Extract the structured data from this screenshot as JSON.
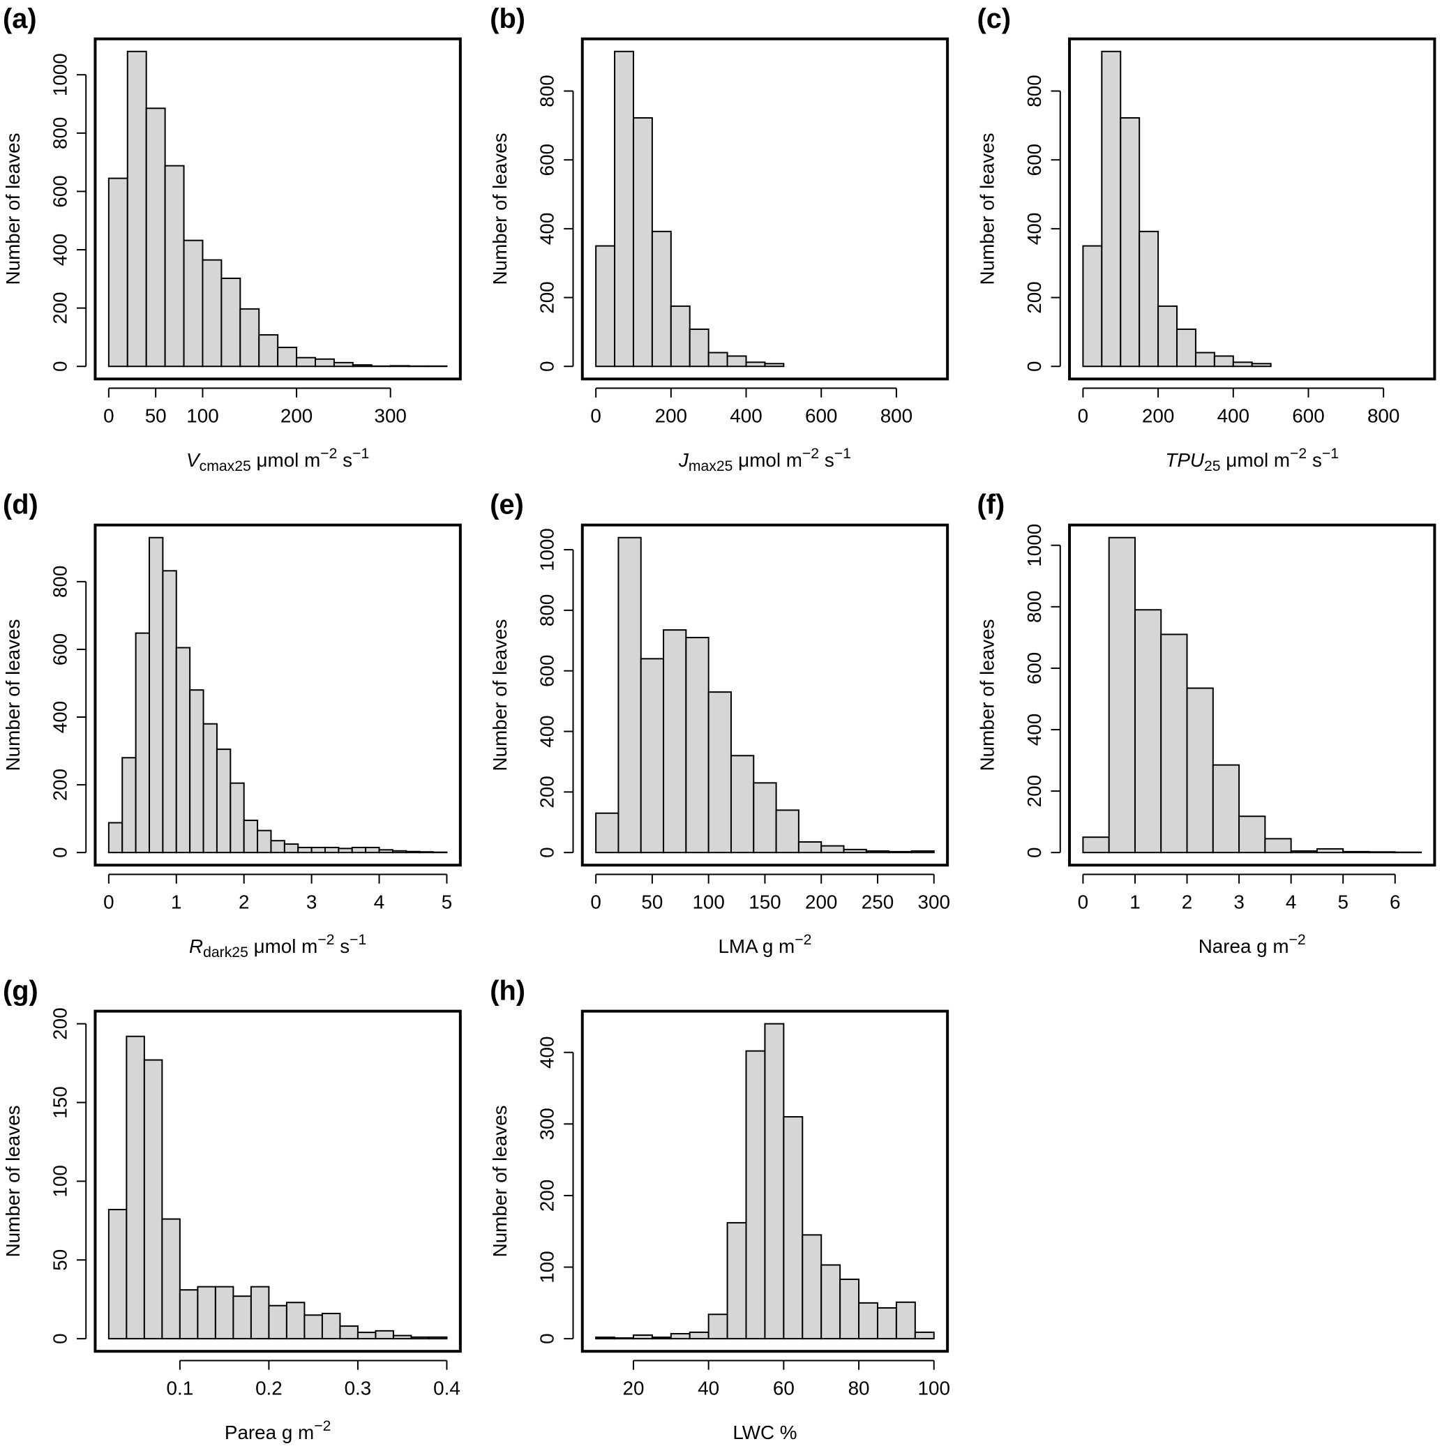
{
  "chart_data": [
    {
      "type": "bar",
      "letter": "(a)",
      "ylabel": "Number of leaves",
      "xlabel": [
        {
          "t": "V",
          "s": "i"
        },
        {
          "t": "cmax25",
          "s": "sub"
        },
        {
          "t": " μmol m",
          "s": ""
        },
        {
          "t": "−2",
          "s": "sup"
        },
        {
          "t": " s",
          "s": ""
        },
        {
          "t": "−1",
          "s": "sup"
        }
      ],
      "bin_start": 0,
      "bin_width": 20,
      "values": [
        645,
        1080,
        885,
        688,
        432,
        365,
        302,
        197,
        108,
        65,
        30,
        25,
        13,
        5,
        1,
        2,
        1,
        1
      ],
      "xticks": [
        0,
        50,
        100,
        200,
        300
      ],
      "yticks": [
        0,
        200,
        400,
        600,
        800,
        1000
      ],
      "ymax": 1080
    },
    {
      "type": "bar",
      "letter": "(b)",
      "ylabel": "Number of leaves",
      "xlabel": [
        {
          "t": "J",
          "s": "i"
        },
        {
          "t": "max25",
          "s": "sub"
        },
        {
          "t": " μmol m",
          "s": ""
        },
        {
          "t": "−2",
          "s": "sup"
        },
        {
          "t": " s",
          "s": ""
        },
        {
          "t": "−1",
          "s": "sup"
        }
      ],
      "bin_start": 0,
      "bin_width": 50,
      "values": [
        350,
        915,
        722,
        392,
        175,
        108,
        40,
        30,
        12,
        8,
        0,
        0,
        0,
        0,
        0,
        0,
        0,
        0
      ],
      "xticks": [
        0,
        200,
        400,
        600,
        800
      ],
      "yticks": [
        0,
        200,
        400,
        600,
        800
      ],
      "ymax": 915
    },
    {
      "type": "bar",
      "letter": "(c)",
      "ylabel": "Number of leaves",
      "xlabel": [
        {
          "t": "TPU",
          "s": "i"
        },
        {
          "t": "25",
          "s": "sub"
        },
        {
          "t": " μmol m",
          "s": ""
        },
        {
          "t": "−2",
          "s": "sup"
        },
        {
          "t": " s",
          "s": ""
        },
        {
          "t": "−1",
          "s": "sup"
        }
      ],
      "bin_start": 0,
      "bin_width": 50,
      "values": [
        350,
        915,
        722,
        392,
        175,
        108,
        40,
        30,
        12,
        8,
        0,
        0,
        0,
        0,
        0,
        0,
        0,
        0
      ],
      "xticks": [
        0,
        200,
        400,
        600,
        800
      ],
      "yticks": [
        0,
        200,
        400,
        600,
        800
      ],
      "ymax": 915
    },
    {
      "type": "bar",
      "letter": "(d)",
      "ylabel": "Number of leaves",
      "xlabel": [
        {
          "t": "R",
          "s": "i"
        },
        {
          "t": "dark25",
          "s": "sub"
        },
        {
          "t": " μmol m",
          "s": ""
        },
        {
          "t": "−2",
          "s": "sup"
        },
        {
          "t": " s",
          "s": ""
        },
        {
          "t": "−1",
          "s": "sup"
        }
      ],
      "bin_start": 0,
      "bin_width": 0.2,
      "values": [
        88,
        280,
        648,
        930,
        832,
        605,
        480,
        380,
        305,
        205,
        95,
        65,
        35,
        25,
        15,
        15,
        15,
        12,
        15,
        15,
        8,
        5,
        3,
        2,
        1
      ],
      "xticks": [
        0,
        1,
        2,
        3,
        4,
        5
      ],
      "yticks": [
        0,
        200,
        400,
        600,
        800
      ],
      "ymax": 930
    },
    {
      "type": "bar",
      "letter": "(e)",
      "ylabel": "Number of leaves",
      "xlabel": [
        {
          "t": "LMA g m",
          "s": ""
        },
        {
          "t": "−2",
          "s": "sup"
        }
      ],
      "bin_start": 0,
      "bin_width": 20,
      "values": [
        130,
        1040,
        640,
        735,
        710,
        530,
        320,
        230,
        140,
        35,
        22,
        10,
        5,
        3,
        5
      ],
      "xticks": [
        0,
        50,
        100,
        150,
        200,
        250,
        300
      ],
      "yticks": [
        0,
        200,
        400,
        600,
        800,
        1000
      ],
      "ymax": 1040
    },
    {
      "type": "bar",
      "letter": "(f)",
      "ylabel": "Number of leaves",
      "xlabel": [
        {
          "t": "Narea g m",
          "s": ""
        },
        {
          "t": "−2",
          "s": "sup"
        }
      ],
      "bin_start": 0,
      "bin_width": 0.5,
      "values": [
        50,
        1025,
        790,
        710,
        535,
        285,
        118,
        45,
        5,
        12,
        3,
        2,
        1
      ],
      "xticks": [
        0,
        1,
        2,
        3,
        4,
        5,
        6
      ],
      "yticks": [
        0,
        200,
        400,
        600,
        800,
        1000
      ],
      "ymax": 1025
    },
    {
      "type": "bar",
      "letter": "(g)",
      "ylabel": "Number of leaves",
      "xlabel": [
        {
          "t": "Parea g m",
          "s": ""
        },
        {
          "t": "−2",
          "s": "sup"
        }
      ],
      "bin_start": 0.02,
      "bin_width": 0.02,
      "values": [
        82,
        192,
        177,
        76,
        31,
        33,
        33,
        27,
        33,
        21,
        23,
        15,
        16,
        8,
        4,
        5,
        2,
        1,
        1
      ],
      "xticks": [
        0.1,
        0.2,
        0.3,
        0.4
      ],
      "yticks": [
        0,
        50,
        100,
        150,
        200
      ],
      "ymax": 200
    },
    {
      "type": "bar",
      "letter": "(h)",
      "ylabel": "Number of leaves",
      "xlabel": [
        {
          "t": "LWC %",
          "s": ""
        }
      ],
      "bin_start": 10,
      "bin_width": 5,
      "values": [
        2,
        1,
        5,
        2,
        7,
        9,
        34,
        162,
        402,
        440,
        310,
        145,
        103,
        83,
        50,
        43,
        51,
        9
      ],
      "xticks": [
        20,
        40,
        60,
        80,
        100
      ],
      "yticks": [
        0,
        100,
        200,
        300,
        400
      ],
      "ymax": 440
    }
  ],
  "colors": {
    "bar_fill": "#d6d6d6",
    "stroke": "#000000"
  }
}
